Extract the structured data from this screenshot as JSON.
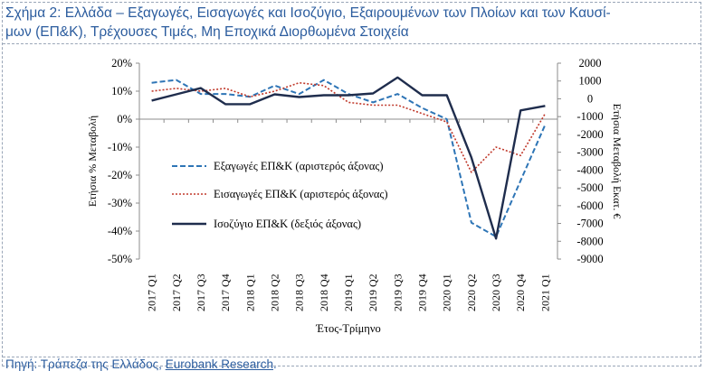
{
  "title": {
    "line1": "Σχήμα 2: Ελλάδα – Εξαγωγές, Εισαγωγές και Ισοζύγιο, Εξαιρουμένων των Πλοίων και των Καυσί-",
    "line2": "μων (ΕΠ&Κ), Τρέχουσες Τιμές, Μη Εποχικά Διορθωμένα Στοιχεία"
  },
  "source": {
    "prefix": "Πηγή: Τράπεζα της Ελλάδος, ",
    "link": "Eurobank Research",
    "suffix": "."
  },
  "colors": {
    "exports": "#2e75b6",
    "imports": "#c0392b",
    "balance": "#1f2d4d",
    "title": "#2b5c9e"
  },
  "chart_data": {
    "type": "line",
    "categories": [
      "2017 Q1",
      "2017 Q2",
      "2017 Q3",
      "2017 Q4",
      "2018 Q1",
      "2018 Q2",
      "2018 Q3",
      "2018 Q4",
      "2019 Q1",
      "2019 Q2",
      "2019 Q3",
      "2019 Q4",
      "2020 Q1",
      "2020 Q2",
      "2020 Q3",
      "2020 Q4",
      "2021 Q1"
    ],
    "xlabel": "Έτος-Τρίμηνο",
    "ylabel_left": "Ετήσια % Μεταβολή",
    "ylabel_right": "Ετήσια Μεταβολή Εκατ. €",
    "ylim_left": [
      -50,
      20
    ],
    "ylim_right": [
      -9000,
      2000
    ],
    "yticks_left": [
      "20%",
      "10%",
      "0%",
      "-10%",
      "-20%",
      "-30%",
      "-40%",
      "-50%"
    ],
    "yticks_right": [
      "2000",
      "1000",
      "0",
      "-1000",
      "-2000",
      "-3000",
      "-4000",
      "-5000",
      "-6000",
      "-7000",
      "-8000",
      "-9000"
    ],
    "grid": false,
    "legend_position": "center-left",
    "series": [
      {
        "name": "Εξαγωγές ΕΠ&Κ (αριστερός άξονας)",
        "axis": "left",
        "style": "dashed",
        "values": [
          13,
          14,
          9,
          9,
          8,
          12,
          9,
          14,
          9,
          6,
          9,
          4,
          0,
          -37,
          -42,
          -22,
          -2
        ]
      },
      {
        "name": "Εισαγωγές ΕΠ&Κ (αριστερός άξονας)",
        "axis": "left",
        "style": "dotted",
        "values": [
          10,
          11,
          10,
          11,
          8,
          10,
          13,
          12,
          6,
          5,
          5,
          2,
          -1,
          -19,
          -10,
          -13,
          2
        ]
      },
      {
        "name": "Ισοζύγιο ΕΠ&Κ (δεξιός άξονας)",
        "axis": "right",
        "style": "solid",
        "values": [
          -100,
          250,
          600,
          -300,
          -300,
          250,
          100,
          200,
          200,
          300,
          1200,
          200,
          200,
          -3300,
          -7850,
          -650,
          -400
        ]
      }
    ]
  }
}
